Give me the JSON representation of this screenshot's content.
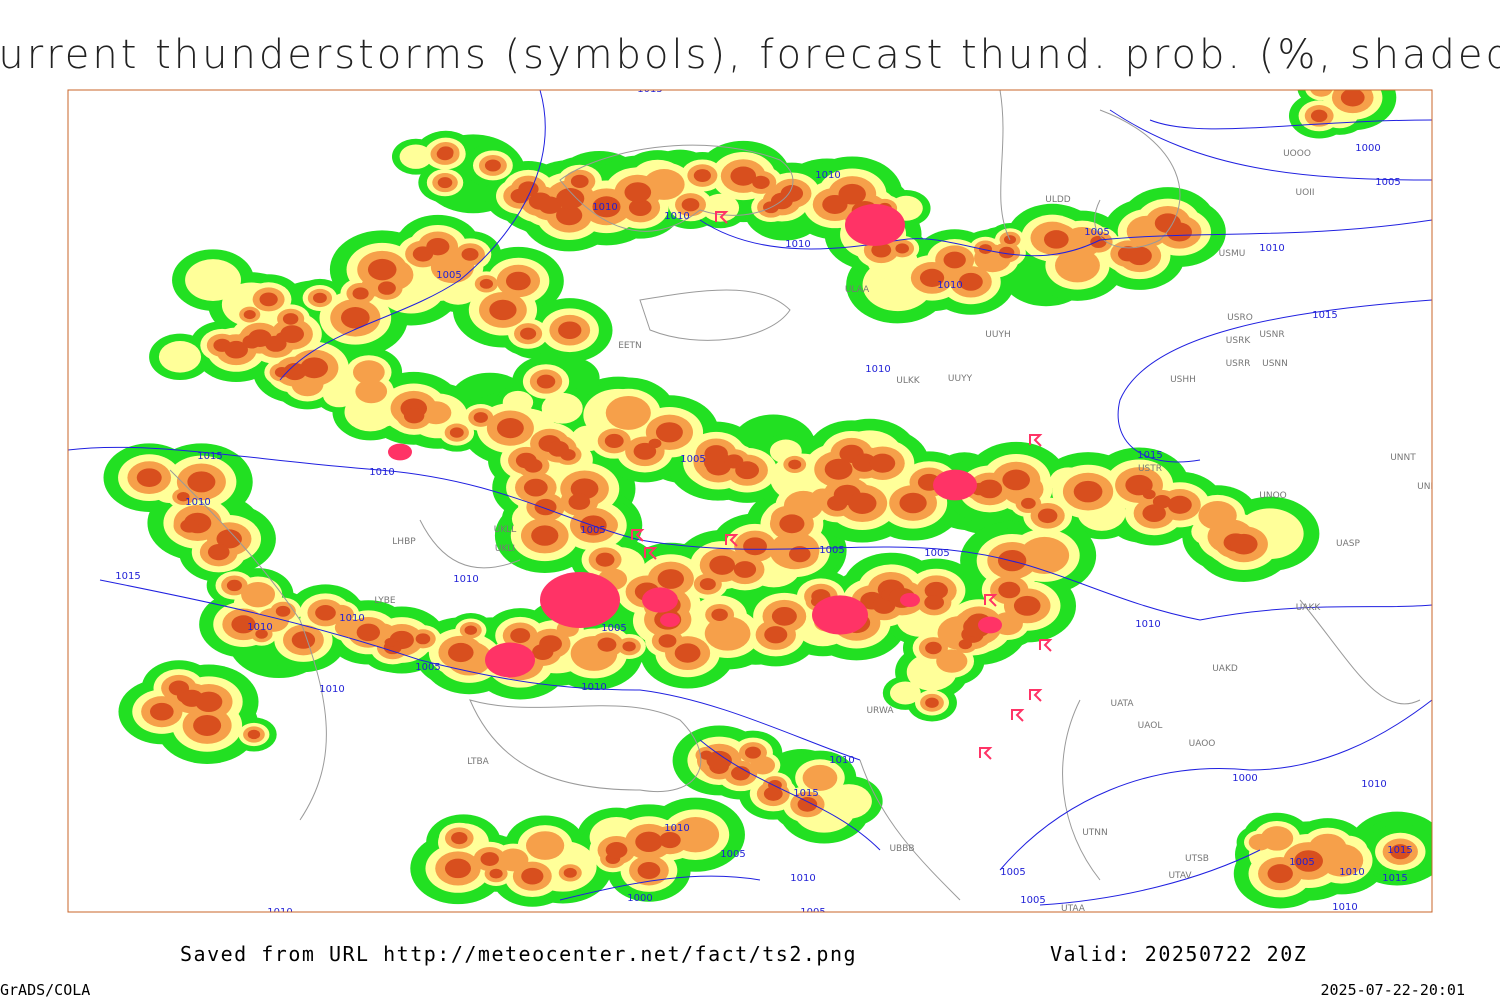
{
  "header": {
    "title": "Current thunderstorms (symbols), forecast thund. prob. (%, shaded)"
  },
  "map": {
    "isobar_labels": [
      "1015",
      "1010",
      "1010",
      "1010",
      "1010",
      "1005",
      "1010",
      "1005",
      "1000",
      "1010",
      "1015",
      "1005",
      "1010",
      "1015",
      "1015",
      "1010",
      "1010",
      "1005",
      "1005",
      "1005",
      "1005",
      "1015",
      "1010",
      "1010",
      "1010",
      "1005",
      "1010",
      "1005",
      "1010",
      "1010",
      "1010",
      "1015",
      "1000",
      "1010",
      "1010",
      "1005",
      "1010",
      "1000",
      "1005",
      "1005",
      "1005",
      "1010",
      "1010",
      "1015",
      "1015",
      "1005",
      "1010"
    ],
    "station_labels": [
      "ULDD",
      "UOII",
      "UOOO",
      "USMU",
      "USRO",
      "USNR",
      "USRK",
      "USRR",
      "USNN",
      "USHH",
      "UUYH",
      "ULKK",
      "UUYY",
      "ULAA",
      "EETN",
      "USTR",
      "UNOO",
      "UNNT",
      "UNBB",
      "UASP",
      "UAKK",
      "UAKD",
      "UATA",
      "UAOL",
      "UAOO",
      "UTNN",
      "UTSB",
      "UTAV",
      "UTAA",
      "UBBB",
      "UKLL",
      "UKLI",
      "LHBP",
      "LYBE",
      "LTBA",
      "URWA"
    ]
  },
  "footer": {
    "source": "Saved from URL http://meteocenter.net/fact/ts2.png",
    "valid": "Valid: 20250722 20Z",
    "software": "GrADS/COLA",
    "timestamp": "2025-07-22-20:01"
  }
}
